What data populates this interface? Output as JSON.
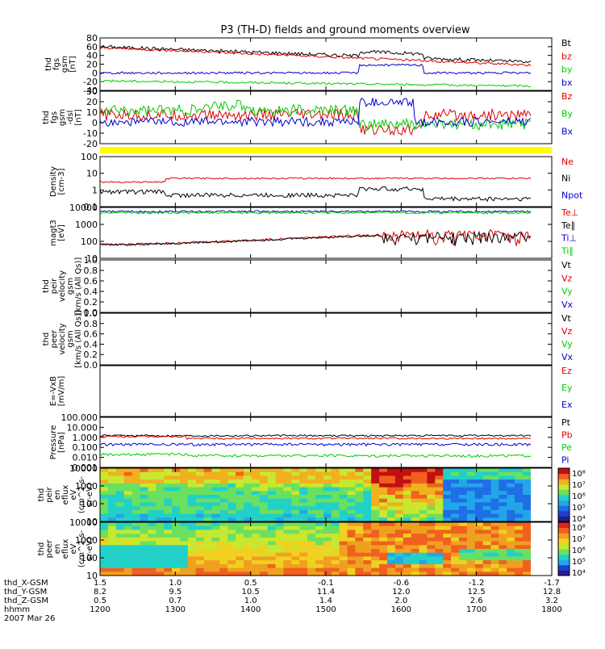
{
  "title": "P3 (TH-D) fields and ground moments overview",
  "colors": {
    "black": "#000000",
    "red": "#dd0000",
    "green": "#00cc00",
    "blue": "#0000cc",
    "yellow": "#ffff00"
  },
  "panels": [
    {
      "id": "fgs-gsm",
      "ylabel": [
        "thd",
        "fgs",
        "gsm",
        "[nT]"
      ],
      "ticks": [
        "80",
        "60",
        "40",
        "20",
        "0",
        "-20",
        "-40"
      ],
      "ylim": [
        -40,
        80
      ],
      "legend": [
        "Bt",
        "bz",
        "by",
        "bx"
      ],
      "legend_colors": [
        "black",
        "red",
        "green",
        "blue"
      ]
    },
    {
      "id": "fgs-gsm-dsl",
      "ylabel": [
        "thd",
        "fgs",
        "gsm",
        "-dsl",
        "[nT]"
      ],
      "ticks": [
        "30",
        "20",
        "10",
        "0",
        "-10",
        "-20"
      ],
      "ylim": [
        -25,
        30
      ],
      "legend": [
        "Bz",
        "By",
        "Bx"
      ],
      "legend_colors": [
        "red",
        "green",
        "blue"
      ]
    },
    {
      "id": "density",
      "ylabel": [
        "Density",
        "[cm-3]"
      ],
      "ticks": [
        "100",
        "10",
        "1",
        "0.1"
      ],
      "ylim": [
        0.1,
        100
      ],
      "log": true,
      "legend": [
        "Ne",
        "Ni",
        "Npot"
      ],
      "legend_colors": [
        "red",
        "black",
        "blue"
      ]
    },
    {
      "id": "temperature",
      "ylabel": [
        "magt3",
        "[eV]"
      ],
      "ticks": [
        "10000",
        "1000",
        "100",
        "10"
      ],
      "ylim": [
        5,
        10000
      ],
      "log": true,
      "legend": [
        "Te⊥",
        "Te∥",
        "Ti⊥",
        "Ti∥"
      ],
      "legend_colors": [
        "red",
        "black",
        "blue",
        "green"
      ]
    },
    {
      "id": "peir-velocity",
      "ylabel": [
        "thd",
        "peir",
        "velocity",
        "gsm",
        "[km/s (All Qs)]"
      ],
      "ticks": [
        "1.0",
        "0.8",
        "0.6",
        "0.4",
        "0.2",
        "0.0"
      ],
      "ylim": [
        0,
        1
      ],
      "legend": [
        "Vt",
        "Vz",
        "Vy",
        "Vx"
      ],
      "legend_colors": [
        "black",
        "red",
        "green",
        "blue"
      ]
    },
    {
      "id": "peer-velocity",
      "ylabel": [
        "thd",
        "peer",
        "velocity",
        "gsm",
        "[km/s (All Qs)]"
      ],
      "ticks": [
        "1.0",
        "0.8",
        "0.6",
        "0.4",
        "0.2",
        "0.0"
      ],
      "ylim": [
        0,
        1
      ],
      "legend": [
        "Vt",
        "Vz",
        "Vy",
        "Vx"
      ],
      "legend_colors": [
        "black",
        "red",
        "green",
        "blue"
      ]
    },
    {
      "id": "efield",
      "ylabel": [
        "E=-VxB",
        "[mV/m]"
      ],
      "ticks": [],
      "ylim": [
        0,
        1
      ],
      "legend": [
        "Ez",
        "Ey",
        "Ex"
      ],
      "legend_colors": [
        "red",
        "green",
        "blue"
      ]
    },
    {
      "id": "pressure",
      "ylabel": [
        "Pressure",
        "[nPa]"
      ],
      "ticks": [
        "100.000",
        "10.000",
        "1.000",
        "0.100",
        "0.010",
        "0.001"
      ],
      "ylim": [
        0.001,
        100
      ],
      "log": true,
      "legend": [
        "Pt",
        "Pb",
        "Pe",
        "Pi"
      ],
      "legend_colors": [
        "black",
        "red",
        "green",
        "blue"
      ]
    },
    {
      "id": "peir-spec",
      "ylabel": [
        "thd",
        "peir",
        "en",
        "eflux",
        "eV",
        "(cm^2-s-",
        "sr-eV)"
      ],
      "ticks": [
        "10000",
        "1000",
        "100",
        "10"
      ],
      "ylim": [
        5,
        20000
      ],
      "log": true,
      "type": "heatmap"
    },
    {
      "id": "peer-spec",
      "ylabel": [
        "thd",
        "peer",
        "en",
        "eflux",
        "eV",
        "(cm^2-s-",
        "sr-eV)"
      ],
      "ticks": [
        "10000",
        "1000",
        "100",
        "10"
      ],
      "ylim": [
        5,
        20000
      ],
      "log": true,
      "type": "heatmap"
    }
  ],
  "colorbar1": {
    "ticks": [
      "10⁸",
      "10⁷",
      "10⁶",
      "10⁵",
      "10⁴"
    ]
  },
  "colorbar2": {
    "ticks": [
      "10⁸",
      "10⁷",
      "10⁶",
      "10⁵",
      "10⁴"
    ]
  },
  "xaxis": {
    "rows": [
      {
        "label": "thd_X-GSM",
        "values": [
          "1.5",
          "1.0",
          "0.5",
          "-0.1",
          "-0.6",
          "-1.2",
          "-1.7"
        ]
      },
      {
        "label": "thd_Y-GSM",
        "values": [
          "8.2",
          "9.5",
          "10.5",
          "11.4",
          "12.0",
          "12.5",
          "12.8"
        ]
      },
      {
        "label": "thd_Z-GSM",
        "values": [
          "0.5",
          "0.7",
          "1.0",
          "1.4",
          "2.0",
          "2.6",
          "3.2"
        ]
      },
      {
        "label": "hhmm",
        "values": [
          "1200",
          "1300",
          "1400",
          "1500",
          "1600",
          "1700",
          "1800"
        ]
      }
    ],
    "date": "2007 Mar 26"
  },
  "chart_data": {
    "type": "line",
    "title": "P3 (TH-D) fields and ground moments overview",
    "x_time_range": [
      "1200",
      "1800"
    ],
    "series_summary": [
      {
        "panel": "fgs-gsm",
        "name": "Bt",
        "approx": "60 → 30 nT, enhanced near 1600"
      },
      {
        "panel": "fgs-gsm",
        "name": "bz",
        "approx": "60 → 20 nT"
      },
      {
        "panel": "fgs-gsm",
        "name": "by",
        "approx": "-20 → -30 nT"
      },
      {
        "panel": "fgs-gsm",
        "name": "bx",
        "approx": "~0 nT, rises to ~25 nT near 1600"
      },
      {
        "panel": "density",
        "name": "Ne",
        "approx": "~5 cm-3"
      },
      {
        "panel": "density",
        "name": "Ni",
        "approx": "~0.5 cm-3"
      },
      {
        "panel": "temperature",
        "name": "Ti",
        "approx": "~5000 eV"
      },
      {
        "panel": "temperature",
        "name": "Te",
        "approx": "40 → 300 eV"
      },
      {
        "panel": "pressure",
        "name": "Pt",
        "approx": "~1 nPa"
      },
      {
        "panel": "pressure",
        "name": "Pe",
        "approx": "~0.02 nPa"
      }
    ]
  }
}
